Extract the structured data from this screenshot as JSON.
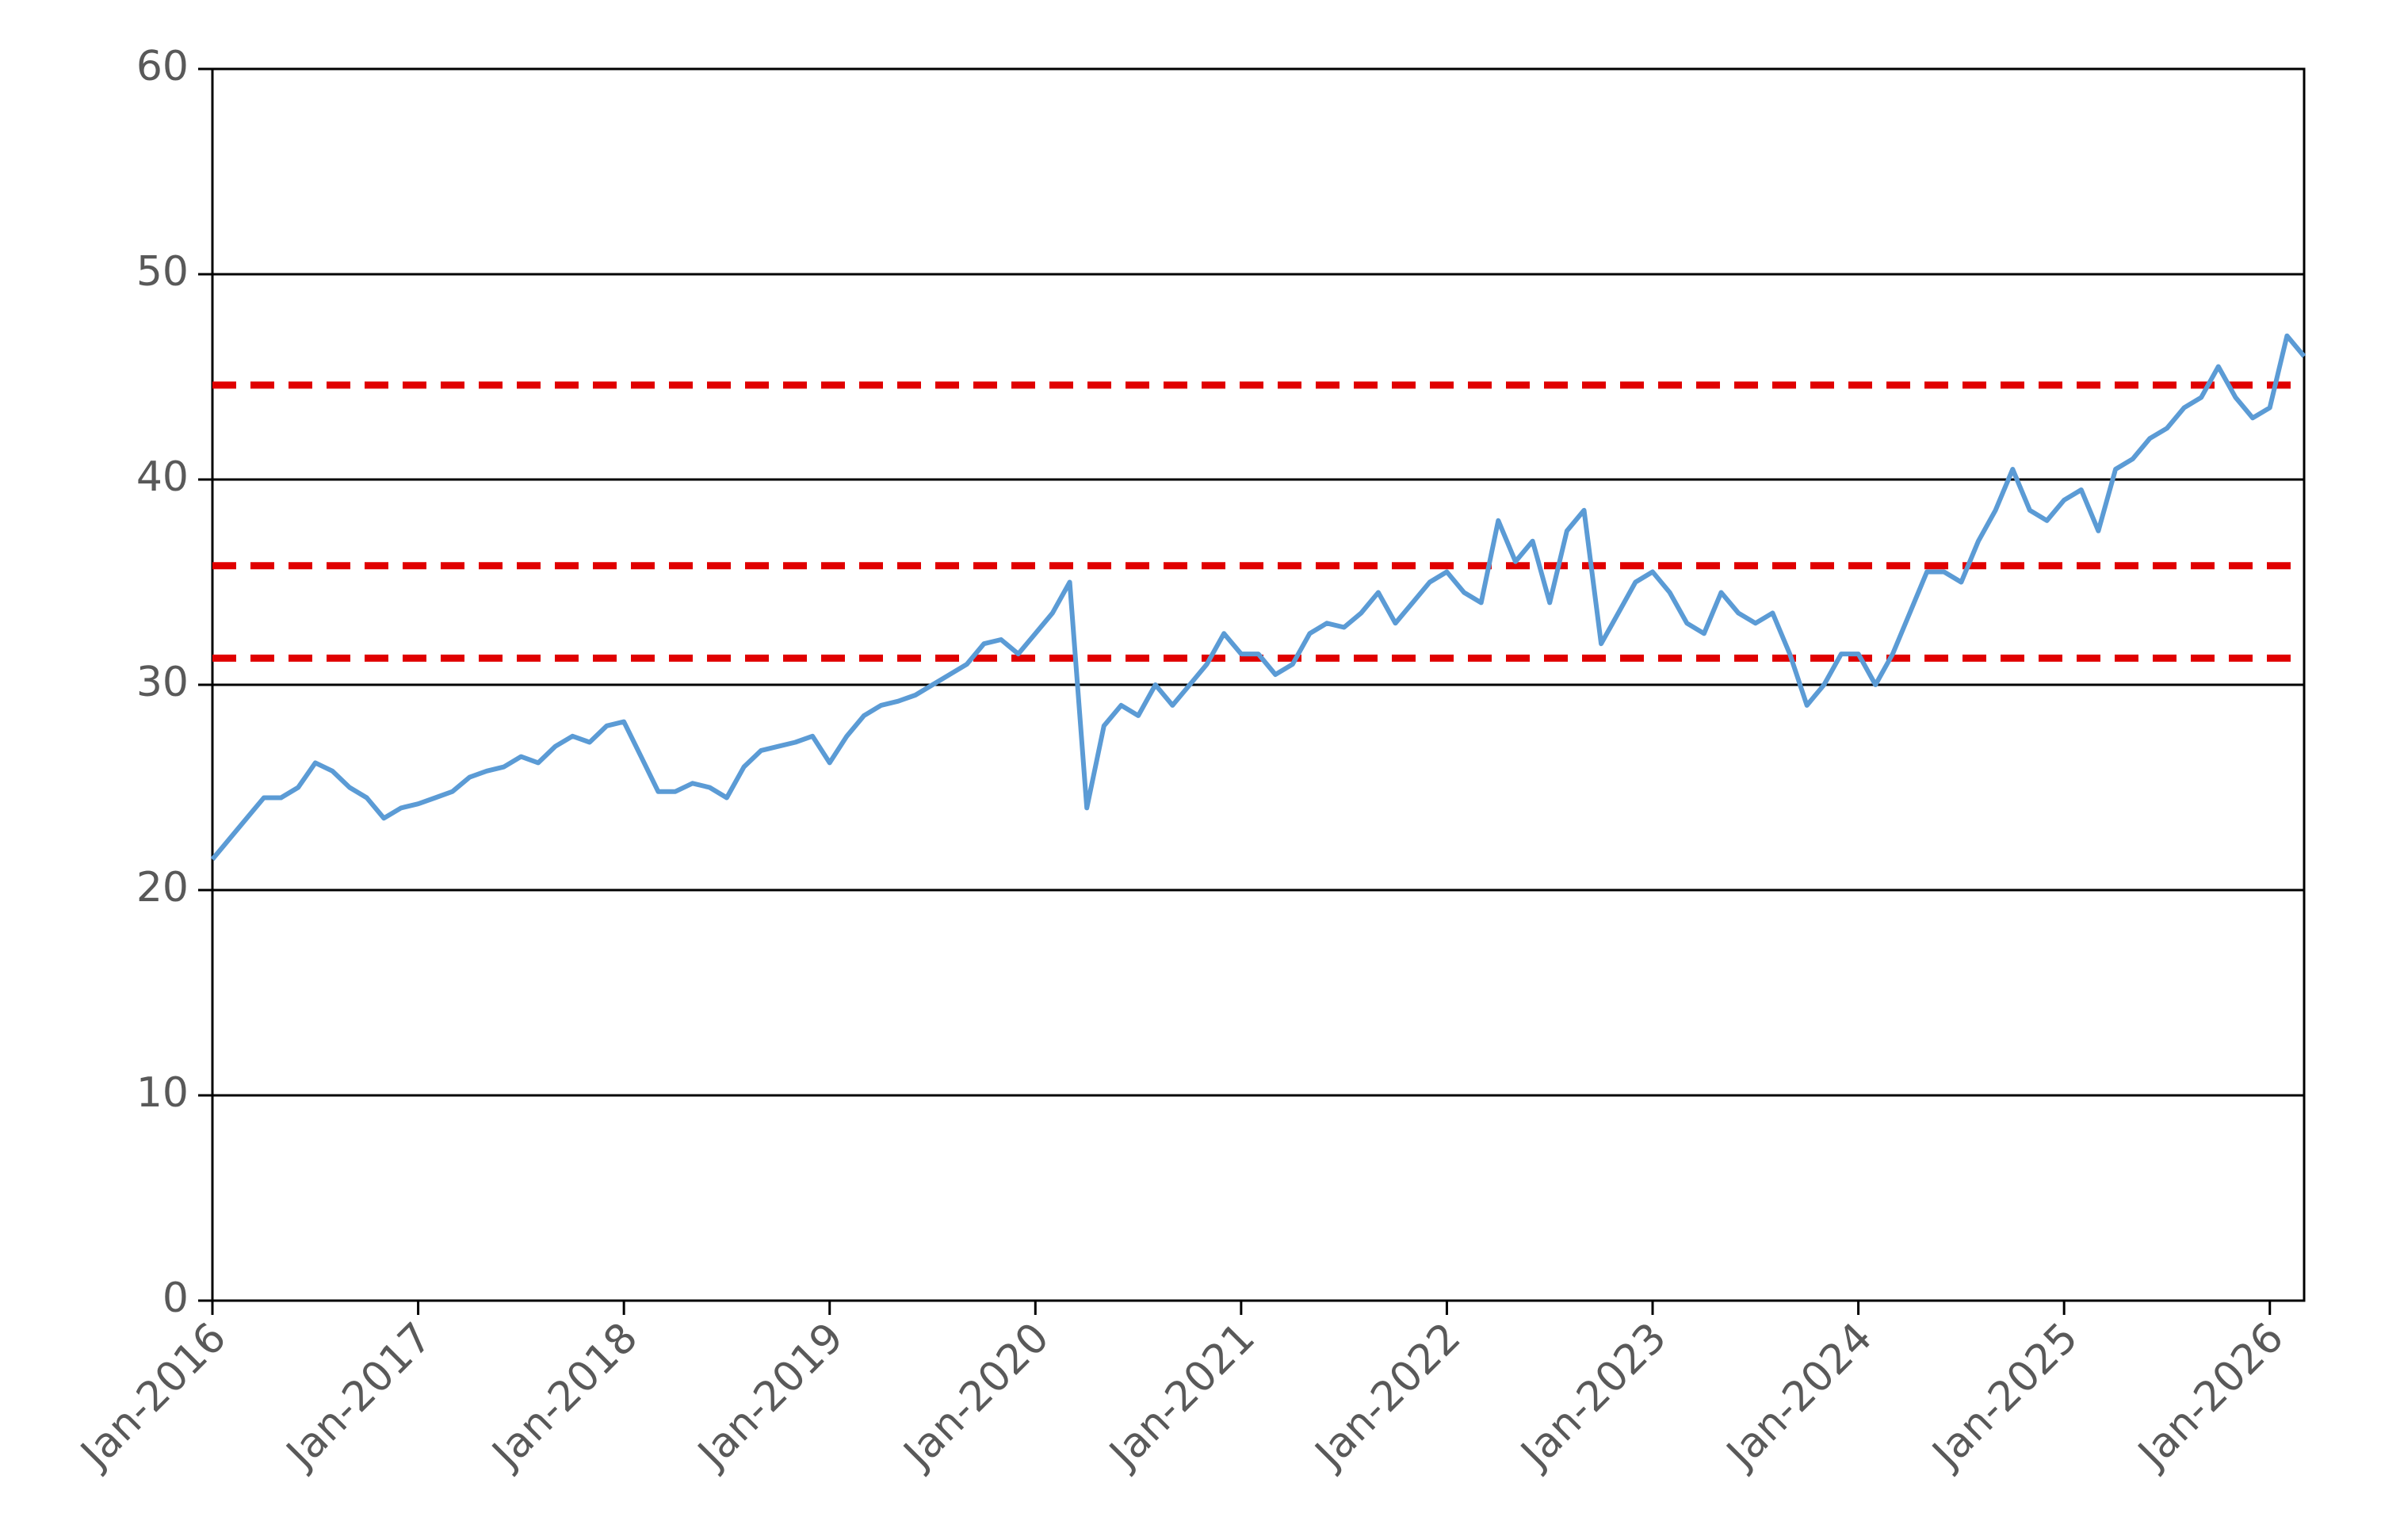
{
  "chart_data": {
    "type": "line",
    "x": [
      "2016-01",
      "2016-02",
      "2016-03",
      "2016-04",
      "2016-05",
      "2016-06",
      "2016-07",
      "2016-08",
      "2016-09",
      "2016-10",
      "2016-11",
      "2016-12",
      "2017-01",
      "2017-02",
      "2017-03",
      "2017-04",
      "2017-05",
      "2017-06",
      "2017-07",
      "2017-08",
      "2017-09",
      "2017-10",
      "2017-11",
      "2017-12",
      "2018-01",
      "2018-02",
      "2018-03",
      "2018-04",
      "2018-05",
      "2018-06",
      "2018-07",
      "2018-08",
      "2018-09",
      "2018-10",
      "2018-11",
      "2018-12",
      "2019-01",
      "2019-02",
      "2019-03",
      "2019-04",
      "2019-05",
      "2019-06",
      "2019-07",
      "2019-08",
      "2019-09",
      "2019-10",
      "2019-11",
      "2019-12",
      "2020-01",
      "2020-02",
      "2020-03",
      "2020-04",
      "2020-05",
      "2020-06",
      "2020-07",
      "2020-08",
      "2020-09",
      "2020-10",
      "2020-11",
      "2020-12",
      "2021-01",
      "2021-02",
      "2021-03",
      "2021-04",
      "2021-05",
      "2021-06",
      "2021-07",
      "2021-08",
      "2021-09",
      "2021-10",
      "2021-11",
      "2021-12",
      "2022-01",
      "2022-02",
      "2022-03",
      "2022-04",
      "2022-05",
      "2022-06",
      "2022-07",
      "2022-08",
      "2022-09",
      "2022-10",
      "2022-11",
      "2022-12",
      "2023-01",
      "2023-02",
      "2023-03",
      "2023-04",
      "2023-05",
      "2023-06",
      "2023-07",
      "2023-08",
      "2023-09",
      "2023-10",
      "2023-11",
      "2023-12",
      "2024-01",
      "2024-02",
      "2024-03",
      "2024-04",
      "2024-05",
      "2024-06",
      "2024-07",
      "2024-08",
      "2024-09",
      "2024-10",
      "2024-11",
      "2024-12",
      "2025-01",
      "2025-02",
      "2025-03",
      "2025-04",
      "2025-05",
      "2025-06",
      "2025-07",
      "2025-08",
      "2025-09",
      "2025-10",
      "2025-11",
      "2025-12",
      "2026-01",
      "2026-02",
      "2026-03"
    ],
    "values": [
      21.5,
      22.5,
      23.5,
      24.5,
      24.5,
      25,
      26.2,
      25.8,
      25,
      24.5,
      23.5,
      24,
      24.2,
      24.5,
      24.8,
      25.5,
      25.8,
      26,
      26.5,
      26.2,
      27,
      27.5,
      27.2,
      28,
      28.2,
      26.5,
      24.8,
      24.8,
      25.2,
      25,
      24.5,
      26,
      26.8,
      27,
      27.2,
      27.5,
      26.2,
      27.5,
      28.5,
      29,
      29.2,
      29.5,
      30,
      30.5,
      31,
      32,
      32.2,
      31.5,
      32.5,
      33.5,
      35,
      24,
      28,
      29,
      28.5,
      30,
      29,
      30,
      31,
      32.5,
      31.5,
      31.5,
      30.5,
      31,
      32.5,
      33,
      32.8,
      33.5,
      34.5,
      33,
      34,
      35,
      35.5,
      34.5,
      34,
      38,
      36,
      37,
      34,
      37.5,
      38.5,
      32,
      33.5,
      35,
      35.5,
      34.5,
      33,
      32.5,
      34.5,
      33.5,
      33,
      33.5,
      31.5,
      29,
      30,
      31.5,
      31.5,
      30,
      31.5,
      33.5,
      35.5,
      35.5,
      35,
      37,
      38.5,
      40.5,
      38.5,
      38,
      39,
      39.5,
      37.5,
      40.5,
      41,
      42,
      42.5,
      43.5,
      44,
      45.5,
      44,
      43,
      43.5,
      47,
      46
    ],
    "color": "#5b9bd5",
    "xlim": [
      "2016-01",
      "2026-03"
    ],
    "xticks": [
      {
        "value": "2016-01",
        "label": "Jan-2016"
      },
      {
        "value": "2017-01",
        "label": "Jan-2017"
      },
      {
        "value": "2018-01",
        "label": "Jan-2018"
      },
      {
        "value": "2019-01",
        "label": "Jan-2019"
      },
      {
        "value": "2020-01",
        "label": "Jan-2020"
      },
      {
        "value": "2021-01",
        "label": "Jan-2021"
      },
      {
        "value": "2022-01",
        "label": "Jan-2022"
      },
      {
        "value": "2023-01",
        "label": "Jan-2023"
      },
      {
        "value": "2024-01",
        "label": "Jan-2024"
      },
      {
        "value": "2025-01",
        "label": "Jan-2025"
      },
      {
        "value": "2026-01",
        "label": "Jan-2026"
      }
    ],
    "ylim": [
      0,
      60
    ],
    "yticks": [
      0,
      10,
      20,
      30,
      40,
      50,
      60
    ],
    "grid": true,
    "reference_lines": {
      "values": [
        44.6,
        35.8,
        31.3
      ],
      "color": "#e00000",
      "style": "dashed"
    }
  }
}
